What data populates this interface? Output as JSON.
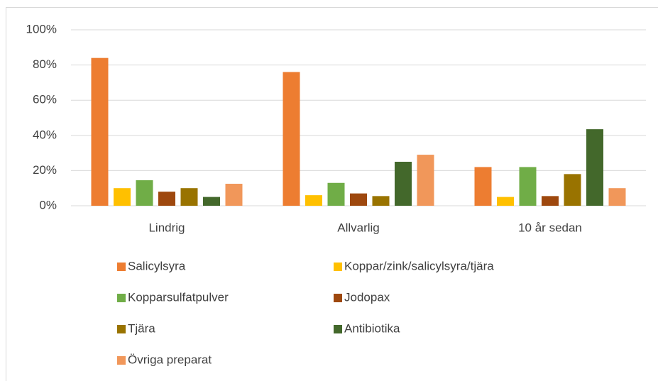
{
  "chart_data": {
    "type": "bar",
    "categories": [
      "Lindrig",
      "Allvarlig",
      "10 år sedan"
    ],
    "series": [
      {
        "name": "Salicylsyra",
        "color": "#ed7d31",
        "values": [
          84,
          76,
          22
        ]
      },
      {
        "name": "Koppar/zink/salicylsyra/tjära",
        "color": "#ffc000",
        "values": [
          10,
          6,
          5
        ]
      },
      {
        "name": "Kopparsulfatpulver",
        "color": "#70ad47",
        "values": [
          14.5,
          13,
          22
        ]
      },
      {
        "name": "Jodopax",
        "color": "#9e480e",
        "values": [
          8,
          7,
          5.5
        ]
      },
      {
        "name": "Tjära",
        "color": "#997300",
        "values": [
          10,
          5.5,
          18
        ]
      },
      {
        "name": "Antibiotika",
        "color": "#43682b",
        "values": [
          5,
          25,
          43.5
        ]
      },
      {
        "name": "Övriga preparat",
        "color": "#f1975a",
        "values": [
          12.5,
          29,
          10
        ]
      }
    ],
    "ylim": [
      0,
      100
    ],
    "yticks": [
      {
        "value": 0,
        "label": "0%"
      },
      {
        "value": 20,
        "label": "20%"
      },
      {
        "value": 40,
        "label": "40%"
      },
      {
        "value": 60,
        "label": "60%"
      },
      {
        "value": 80,
        "label": "80%"
      },
      {
        "value": 100,
        "label": "100%"
      }
    ],
    "grid": true,
    "legend": "bottom"
  }
}
